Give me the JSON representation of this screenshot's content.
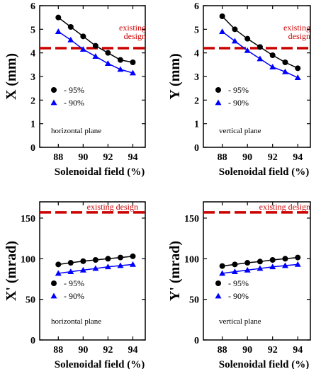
{
  "colors": {
    "series1": "#000000",
    "series2": "#0000ff",
    "reference": "#cc0000"
  },
  "chart_data": [
    {
      "type": "line",
      "xlabel": "Solenoidal field (%)",
      "ylabel": "X (mm)",
      "xlim": [
        86.5,
        95
      ],
      "ylim": [
        0,
        6
      ],
      "xticks": [
        "88",
        "90",
        "92",
        "94"
      ],
      "yticks": [
        "0",
        "1",
        "2",
        "3",
        "4",
        "5",
        "6"
      ],
      "x": [
        88,
        89,
        90,
        91,
        92,
        93,
        94
      ],
      "series": [
        {
          "name": "- 95%",
          "marker": "circle",
          "values": [
            5.5,
            5.1,
            4.7,
            4.3,
            4.0,
            3.7,
            3.6
          ]
        },
        {
          "name": "- 90%",
          "marker": "triangle",
          "values": [
            4.9,
            4.55,
            4.15,
            3.85,
            3.55,
            3.3,
            3.15
          ]
        }
      ],
      "reference": {
        "label_lines": [
          "existing",
          "design"
        ],
        "value": 4.2
      },
      "annotation": "horizontal plane"
    },
    {
      "type": "line",
      "xlabel": "Solenoidal field (%)",
      "ylabel": "Y (mm)",
      "xlim": [
        86.5,
        95
      ],
      "ylim": [
        0,
        6
      ],
      "xticks": [
        "88",
        "90",
        "92",
        "94"
      ],
      "yticks": [
        "0",
        "1",
        "2",
        "3",
        "4",
        "5",
        "6"
      ],
      "x": [
        88,
        89,
        90,
        91,
        92,
        93,
        94
      ],
      "series": [
        {
          "name": "- 95%",
          "marker": "circle",
          "values": [
            5.55,
            5.0,
            4.6,
            4.25,
            3.9,
            3.6,
            3.35
          ]
        },
        {
          "name": "- 90%",
          "marker": "triangle",
          "values": [
            4.9,
            4.5,
            4.1,
            3.75,
            3.4,
            3.2,
            2.95
          ]
        }
      ],
      "reference": {
        "label_lines": [
          "existing",
          "design"
        ],
        "value": 4.2
      },
      "annotation": "vertical plane"
    },
    {
      "type": "line",
      "xlabel": "Solenoidal field (%)",
      "ylabel": "X' (mrad)",
      "xlim": [
        86.5,
        95
      ],
      "ylim": [
        0,
        170
      ],
      "xticks": [
        "88",
        "90",
        "92",
        "94"
      ],
      "yticks": [
        "0",
        "50",
        "100",
        "150"
      ],
      "x": [
        88,
        89,
        90,
        91,
        92,
        93,
        94
      ],
      "series": [
        {
          "name": "- 95%",
          "marker": "circle",
          "values": [
            93,
            95,
            97,
            98.5,
            100,
            101.5,
            103
          ]
        },
        {
          "name": "- 90%",
          "marker": "triangle",
          "values": [
            82,
            84,
            86,
            88,
            90,
            91.5,
            93
          ]
        }
      ],
      "reference": {
        "label_lines": [
          "existing design"
        ],
        "value": 157
      },
      "annotation": "horizontal plane"
    },
    {
      "type": "line",
      "xlabel": "Solenoidal field (%)",
      "ylabel": "Y' (mrad)",
      "xlim": [
        86.5,
        95
      ],
      "ylim": [
        0,
        170
      ],
      "xticks": [
        "88",
        "90",
        "92",
        "94"
      ],
      "yticks": [
        "0",
        "50",
        "100",
        "150"
      ],
      "x": [
        88,
        89,
        90,
        91,
        92,
        93,
        94
      ],
      "series": [
        {
          "name": "- 95%",
          "marker": "circle",
          "values": [
            91,
            93,
            95,
            96.5,
            98.5,
            100,
            101.5
          ]
        },
        {
          "name": "- 90%",
          "marker": "triangle",
          "values": [
            82,
            84,
            86,
            88,
            90,
            91.5,
            93
          ]
        }
      ],
      "reference": {
        "label_lines": [
          "existing design"
        ],
        "value": 157
      },
      "annotation": "vertical plane"
    }
  ]
}
